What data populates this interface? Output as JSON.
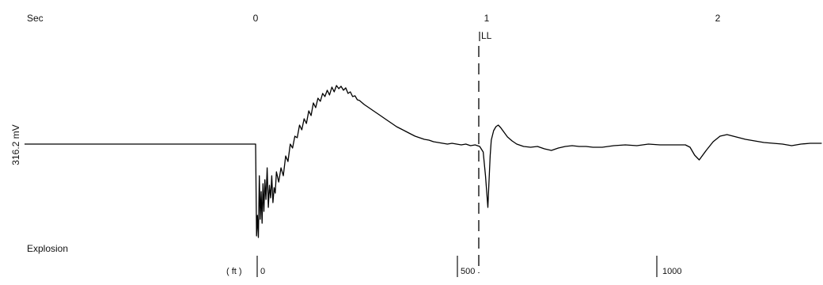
{
  "chart_data": {
    "type": "line",
    "title": "",
    "time_axis": {
      "label": "Sec",
      "ticks": [
        "0",
        "1",
        "2"
      ]
    },
    "distance_axis": {
      "label": "( ft )",
      "ticks": [
        "0",
        "500",
        "1000"
      ]
    },
    "ylabel": "316.2 mV",
    "channel_label": "Explosion",
    "marker": {
      "label": "LL",
      "time_s": 1.0
    },
    "baseline_mV": 316.2,
    "series": [
      {
        "x": [
          -1.0,
          -0.5,
          -0.02,
          0.0,
          0.004,
          0.008,
          0.012,
          0.016,
          0.02,
          0.024,
          0.028,
          0.032,
          0.036,
          0.04,
          0.045,
          0.05,
          0.055,
          0.06,
          0.065,
          0.07,
          0.075,
          0.08,
          0.085,
          0.09,
          0.1,
          0.11,
          0.12,
          0.13,
          0.14,
          0.15,
          0.16,
          0.17,
          0.18,
          0.19,
          0.2,
          0.21,
          0.22,
          0.23,
          0.24,
          0.25,
          0.26,
          0.27,
          0.28,
          0.29,
          0.3,
          0.31,
          0.32,
          0.33,
          0.34,
          0.35,
          0.36,
          0.37,
          0.38,
          0.39,
          0.4,
          0.41,
          0.42,
          0.43,
          0.44,
          0.45,
          0.47,
          0.49,
          0.51,
          0.53,
          0.55,
          0.57,
          0.59,
          0.61,
          0.63,
          0.65,
          0.67,
          0.69,
          0.71,
          0.73,
          0.75,
          0.77,
          0.79,
          0.81,
          0.83,
          0.85,
          0.87,
          0.89,
          0.91,
          0.93,
          0.95,
          0.97,
          0.985,
          0.995,
          1.0,
          1.005,
          1.01,
          1.015,
          1.02,
          1.03,
          1.04,
          1.05,
          1.06,
          1.075,
          1.09,
          1.11,
          1.13,
          1.16,
          1.19,
          1.22,
          1.25,
          1.28,
          1.31,
          1.34,
          1.37,
          1.4,
          1.43,
          1.46,
          1.5,
          1.55,
          1.6,
          1.65,
          1.7,
          1.75,
          1.8,
          1.84,
          1.86,
          1.88,
          1.9,
          1.92,
          1.95,
          1.98,
          2.01,
          2.04,
          2.08,
          2.12,
          2.16,
          2.2,
          2.24,
          2.28,
          2.32,
          2.36,
          2.4,
          2.45
        ],
        "y": [
          0,
          0,
          0,
          0,
          -116,
          -90,
          -118,
          -40,
          -95,
          -60,
          -100,
          -50,
          -85,
          -45,
          -70,
          -30,
          -80,
          -52,
          -68,
          -40,
          -74,
          -55,
          -62,
          -35,
          -48,
          -30,
          -40,
          -15,
          -22,
          0,
          -5,
          10,
          8,
          24,
          18,
          32,
          26,
          42,
          36,
          52,
          46,
          58,
          54,
          64,
          60,
          68,
          62,
          72,
          66,
          74,
          70,
          73,
          68,
          71,
          64,
          66,
          60,
          61,
          56,
          55,
          50,
          46,
          42,
          38,
          34,
          30,
          26,
          22,
          19,
          16,
          13,
          10,
          8,
          6,
          5,
          3,
          2,
          1,
          0,
          1,
          0,
          -1,
          0,
          -2,
          -1,
          -3,
          -10,
          -40,
          -60,
          -80,
          -48,
          -15,
          5,
          17,
          22,
          24,
          21,
          15,
          9,
          4,
          0,
          -3,
          -4,
          -3,
          -6,
          -8,
          -5,
          -3,
          -2,
          -3,
          -3,
          -4,
          -4,
          -2,
          -1,
          -2,
          0,
          -1,
          -1,
          -1,
          -1,
          -4,
          -14,
          -20,
          -8,
          3,
          10,
          12,
          9,
          6,
          4,
          2,
          1,
          0,
          -2,
          0,
          1,
          1
        ]
      }
    ]
  }
}
